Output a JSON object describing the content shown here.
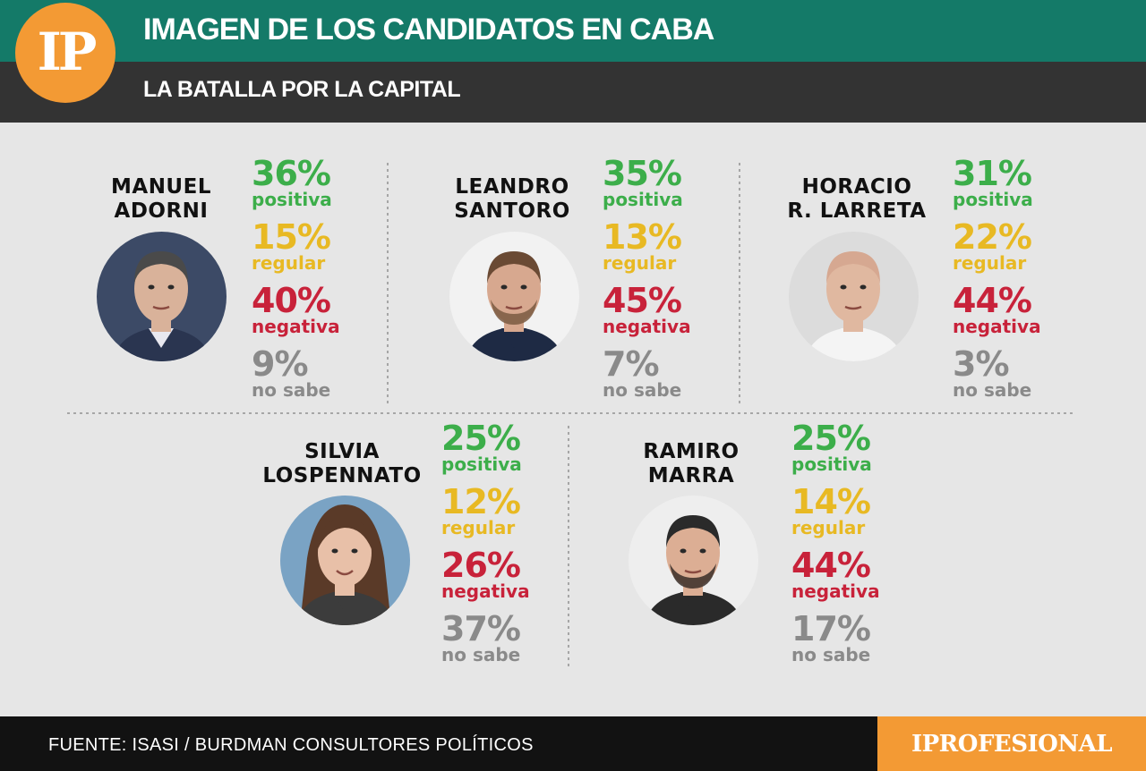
{
  "header": {
    "title": "IMAGEN DE LOS CANDIDATOS EN CABA",
    "subtitle": "LA BATALLA POR LA CAPITAL",
    "logo_text": "IP",
    "colors": {
      "top_band": "#147a68",
      "bottom_band": "#333333",
      "logo": "#f39a34"
    }
  },
  "chart_data": {
    "type": "table",
    "title": "IMAGEN DE LOS CANDIDATOS EN CABA",
    "subtitle": "LA BATALLA POR LA CAPITAL",
    "categories": [
      "positiva",
      "regular",
      "negativa",
      "no sabe"
    ],
    "category_colors": [
      "#3cae4a",
      "#e8b923",
      "#c8223a",
      "#8a8a8a"
    ],
    "candidates": [
      {
        "name_line1": "MANUEL",
        "name_line2": "ADORNI",
        "photo_icon": "man-portrait-icon",
        "values": [
          36,
          15,
          40,
          9
        ],
        "labels": [
          "36%",
          "15%",
          "40%",
          "9%"
        ]
      },
      {
        "name_line1": "LEANDRO",
        "name_line2": "SANTORO",
        "photo_icon": "man-portrait-icon",
        "values": [
          35,
          13,
          45,
          7
        ],
        "labels": [
          "35%",
          "13%",
          "45%",
          "7%"
        ]
      },
      {
        "name_line1": "HORACIO",
        "name_line2": "R. LARRETA",
        "photo_icon": "man-portrait-icon",
        "values": [
          31,
          22,
          44,
          3
        ],
        "labels": [
          "31%",
          "22%",
          "44%",
          "3%"
        ]
      },
      {
        "name_line1": "SILVIA",
        "name_line2": "LOSPENNATO",
        "photo_icon": "woman-portrait-icon",
        "values": [
          25,
          12,
          26,
          37
        ],
        "labels": [
          "25%",
          "12%",
          "26%",
          "37%"
        ]
      },
      {
        "name_line1": "RAMIRO",
        "name_line2": "MARRA",
        "photo_icon": "man-portrait-icon",
        "values": [
          25,
          14,
          44,
          17
        ],
        "labels": [
          "25%",
          "14%",
          "44%",
          "17%"
        ]
      }
    ]
  },
  "footer": {
    "source": "FUENTE: ISASI / BURDMAN CONSULTORES POLÍTICOS",
    "brand": "IPROFESIONAL"
  }
}
